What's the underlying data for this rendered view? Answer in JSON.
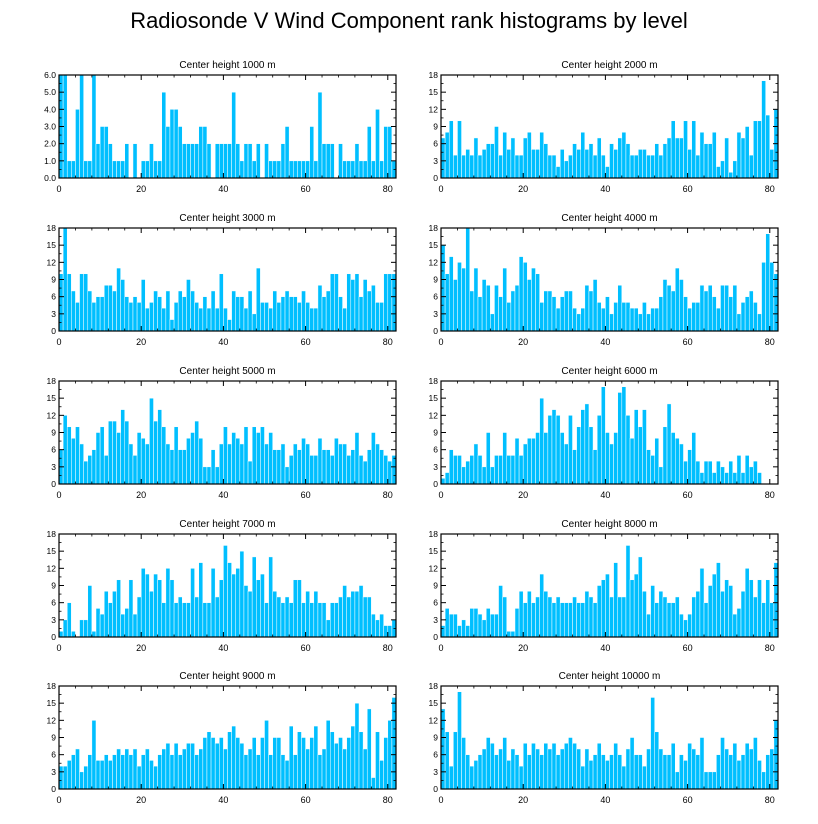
{
  "title": "Radiosonde V Wind Component rank histograms by level",
  "bar_color": "#00BFFF",
  "bar_edge_color": "#ffffff",
  "chart_data": [
    {
      "type": "bar",
      "title": "Center height 1000 m",
      "x_ticks": [
        0,
        20,
        40,
        60,
        80
      ],
      "xlim": [
        0,
        82
      ],
      "ylim": [
        0,
        6
      ],
      "y_ticks": [
        0,
        1,
        2,
        3,
        4,
        5,
        6
      ],
      "y_tick_labels": [
        "0.0",
        "1.0",
        "2.0",
        "3.0",
        "4.0",
        "5.0",
        "6.0"
      ],
      "values": [
        6,
        6,
        1,
        1,
        4,
        6,
        1,
        1,
        6,
        2,
        3,
        3,
        2,
        1,
        1,
        1,
        2,
        0,
        2,
        0,
        1,
        1,
        2,
        1,
        1,
        5,
        3,
        4,
        4,
        3,
        2,
        2,
        2,
        2,
        3,
        3,
        2,
        0,
        2,
        2,
        2,
        2,
        5,
        2,
        1,
        2,
        2,
        1,
        2,
        0,
        2,
        1,
        1,
        1,
        2,
        3,
        1,
        1,
        1,
        1,
        1,
        3,
        1,
        5,
        2,
        2,
        2,
        0,
        2,
        1,
        1,
        1,
        2,
        1,
        1,
        3,
        1,
        4,
        1,
        3,
        3,
        1
      ]
    },
    {
      "type": "bar",
      "title": "Center height 2000 m",
      "x_ticks": [
        0,
        20,
        40,
        60,
        80
      ],
      "xlim": [
        0,
        82
      ],
      "ylim": [
        0,
        18
      ],
      "y_ticks": [
        0,
        3,
        6,
        9,
        12,
        15,
        18
      ],
      "y_tick_labels": [
        "0",
        "3",
        "6",
        "9",
        "12",
        "15",
        "18"
      ],
      "values": [
        7,
        8,
        10,
        4,
        10,
        4,
        5,
        4,
        7,
        4,
        5,
        6,
        6,
        9,
        4,
        8,
        5,
        7,
        4,
        4,
        7,
        8,
        5,
        5,
        8,
        6,
        4,
        4,
        2,
        5,
        3,
        4,
        6,
        5,
        8,
        5,
        6,
        4,
        7,
        4,
        2,
        6,
        5,
        7,
        8,
        6,
        4,
        4,
        5,
        5,
        4,
        4,
        6,
        4,
        6,
        7,
        10,
        7,
        7,
        10,
        5,
        10,
        4,
        8,
        6,
        6,
        8,
        2,
        3,
        7,
        1,
        3,
        8,
        7,
        9,
        4,
        10,
        10,
        17,
        11,
        5,
        12
      ]
    },
    {
      "type": "bar",
      "title": "Center height 3000 m",
      "x_ticks": [
        0,
        20,
        40,
        60,
        80
      ],
      "xlim": [
        0,
        82
      ],
      "ylim": [
        0,
        18
      ],
      "y_ticks": [
        0,
        3,
        6,
        9,
        12,
        15,
        18
      ],
      "y_tick_labels": [
        "0",
        "3",
        "6",
        "9",
        "12",
        "15",
        "18"
      ],
      "values": [
        10,
        18,
        10,
        7,
        5,
        10,
        10,
        7,
        5,
        6,
        6,
        8,
        8,
        7,
        11,
        9,
        6,
        5,
        6,
        5,
        9,
        4,
        5,
        7,
        6,
        4,
        7,
        2,
        5,
        7,
        6,
        9,
        7,
        5,
        4,
        6,
        4,
        7,
        4,
        10,
        4,
        2,
        7,
        6,
        6,
        4,
        7,
        3,
        11,
        5,
        5,
        4,
        7,
        5,
        6,
        7,
        6,
        6,
        5,
        7,
        5,
        4,
        4,
        8,
        6,
        7,
        10,
        10,
        6,
        4,
        10,
        9,
        10,
        6,
        9,
        7,
        8,
        5,
        5,
        10,
        10,
        10
      ]
    },
    {
      "type": "bar",
      "title": "Center height 4000 m",
      "x_ticks": [
        0,
        20,
        40,
        60,
        80
      ],
      "xlim": [
        0,
        82
      ],
      "ylim": [
        0,
        18
      ],
      "y_ticks": [
        0,
        3,
        6,
        9,
        12,
        15,
        18
      ],
      "y_tick_labels": [
        "0",
        "3",
        "6",
        "9",
        "12",
        "15",
        "18"
      ],
      "values": [
        15,
        10,
        13,
        9,
        12,
        11,
        18,
        7,
        11,
        6,
        9,
        8,
        3,
        8,
        6,
        11,
        5,
        7,
        8,
        13,
        12,
        9,
        11,
        10,
        5,
        7,
        7,
        6,
        4,
        6,
        7,
        7,
        4,
        3,
        4,
        8,
        7,
        9,
        5,
        4,
        6,
        3,
        5,
        8,
        5,
        5,
        4,
        4,
        3,
        5,
        3,
        4,
        4,
        6,
        9,
        8,
        7,
        11,
        9,
        6,
        4,
        5,
        5,
        8,
        7,
        8,
        6,
        4,
        8,
        8,
        6,
        8,
        3,
        5,
        6,
        7,
        5,
        3,
        12,
        17,
        12,
        10
      ]
    },
    {
      "type": "bar",
      "title": "Center height 5000 m",
      "x_ticks": [
        0,
        20,
        40,
        60,
        80
      ],
      "xlim": [
        0,
        82
      ],
      "ylim": [
        0,
        18
      ],
      "y_ticks": [
        0,
        3,
        6,
        9,
        12,
        15,
        18
      ],
      "y_tick_labels": [
        "0",
        "3",
        "6",
        "9",
        "12",
        "15",
        "18"
      ],
      "values": [
        6,
        12,
        10,
        8,
        10,
        7,
        4,
        5,
        6,
        9,
        10,
        5,
        11,
        11,
        9,
        13,
        11,
        7,
        5,
        9,
        8,
        7,
        15,
        11,
        13,
        10,
        7,
        6,
        10,
        6,
        6,
        8,
        9,
        11,
        8,
        3,
        3,
        6,
        3,
        7,
        10,
        7,
        9,
        8,
        7,
        10,
        4,
        10,
        9,
        10,
        7,
        9,
        6,
        6,
        7,
        3,
        5,
        7,
        6,
        8,
        7,
        5,
        5,
        8,
        6,
        6,
        5,
        8,
        7,
        7,
        5,
        6,
        9,
        5,
        4,
        6,
        9,
        7,
        6,
        5,
        4,
        5
      ]
    },
    {
      "type": "bar",
      "title": "Center height 6000 m",
      "x_ticks": [
        0,
        20,
        40,
        60,
        80
      ],
      "xlim": [
        0,
        82
      ],
      "ylim": [
        0,
        18
      ],
      "y_ticks": [
        0,
        3,
        6,
        9,
        12,
        15,
        18
      ],
      "y_tick_labels": [
        "0",
        "3",
        "6",
        "9",
        "12",
        "15",
        "18"
      ],
      "values": [
        1,
        2,
        6,
        5,
        5,
        3,
        4,
        5,
        7,
        5,
        3,
        9,
        3,
        5,
        5,
        9,
        5,
        5,
        8,
        5,
        7,
        8,
        8,
        9,
        15,
        9,
        12,
        13,
        12,
        9,
        7,
        12,
        6,
        10,
        13,
        14,
        10,
        6,
        12,
        17,
        9,
        7,
        9,
        16,
        17,
        12,
        8,
        13,
        10,
        13,
        6,
        5,
        8,
        3,
        10,
        14,
        9,
        8,
        7,
        4,
        6,
        9,
        4,
        2,
        4,
        4,
        2,
        4,
        3,
        2,
        4,
        2,
        5,
        2,
        5,
        3,
        4,
        2
      ]
    },
    {
      "type": "bar",
      "title": "Center height 7000 m",
      "x_ticks": [
        0,
        20,
        40,
        60,
        80
      ],
      "xlim": [
        0,
        82
      ],
      "ylim": [
        0,
        18
      ],
      "y_ticks": [
        0,
        3,
        6,
        9,
        12,
        15,
        18
      ],
      "y_tick_labels": [
        "0",
        "3",
        "6",
        "9",
        "12",
        "15",
        "18"
      ],
      "values": [
        1,
        3,
        6,
        1,
        0,
        3,
        3,
        9,
        1,
        5,
        4,
        8,
        6,
        8,
        10,
        4,
        5,
        10,
        4,
        7,
        12,
        11,
        8,
        11,
        10,
        6,
        12,
        10,
        6,
        7,
        6,
        6,
        12,
        7,
        13,
        6,
        6,
        12,
        7,
        10,
        16,
        13,
        11,
        12,
        15,
        9,
        8,
        14,
        10,
        11,
        6,
        14,
        8,
        7,
        6,
        7,
        6,
        10,
        10,
        6,
        8,
        6,
        8,
        6,
        6,
        3,
        6,
        6,
        7,
        9,
        7,
        8,
        8,
        9,
        7,
        7,
        4,
        3,
        4,
        2,
        2,
        3
      ]
    },
    {
      "type": "bar",
      "title": "Center height 8000 m",
      "x_ticks": [
        0,
        20,
        40,
        60,
        80
      ],
      "xlim": [
        0,
        82
      ],
      "ylim": [
        0,
        18
      ],
      "y_ticks": [
        0,
        3,
        6,
        9,
        12,
        15,
        18
      ],
      "y_tick_labels": [
        "0",
        "3",
        "6",
        "9",
        "12",
        "15",
        "18"
      ],
      "values": [
        2,
        5,
        4,
        4,
        2,
        3,
        2,
        5,
        5,
        4,
        3,
        5,
        4,
        4,
        9,
        7,
        1,
        1,
        5,
        8,
        6,
        8,
        6,
        7,
        11,
        8,
        7,
        6,
        7,
        6,
        6,
        6,
        7,
        6,
        6,
        8,
        7,
        6,
        9,
        10,
        11,
        7,
        13,
        7,
        7,
        16,
        10,
        11,
        14,
        8,
        4,
        9,
        6,
        8,
        7,
        6,
        6,
        7,
        4,
        3,
        4,
        7,
        8,
        12,
        6,
        9,
        11,
        13,
        8,
        10,
        9,
        4,
        5,
        8,
        12,
        10,
        7,
        10,
        6,
        10,
        6,
        13
      ]
    },
    {
      "type": "bar",
      "title": "Center height 9000 m",
      "x_ticks": [
        0,
        20,
        40,
        60,
        80
      ],
      "xlim": [
        0,
        82
      ],
      "ylim": [
        0,
        18
      ],
      "y_ticks": [
        0,
        3,
        6,
        9,
        12,
        15,
        18
      ],
      "y_tick_labels": [
        "0",
        "3",
        "6",
        "9",
        "12",
        "15",
        "18"
      ],
      "values": [
        4,
        4,
        5,
        6,
        7,
        3,
        4,
        6,
        12,
        5,
        5,
        6,
        5,
        6,
        7,
        6,
        7,
        6,
        7,
        4,
        6,
        7,
        5,
        4,
        6,
        7,
        8,
        6,
        8,
        6,
        7,
        8,
        8,
        6,
        7,
        9,
        10,
        9,
        8,
        9,
        7,
        10,
        11,
        9,
        8,
        6,
        7,
        9,
        6,
        9,
        12,
        6,
        9,
        9,
        6,
        5,
        11,
        6,
        10,
        9,
        7,
        9,
        11,
        6,
        7,
        12,
        10,
        8,
        9,
        7,
        9,
        11,
        15,
        10,
        7,
        14,
        2,
        10,
        5,
        9,
        12,
        16
      ]
    },
    {
      "type": "bar",
      "title": "Center height 10000 m",
      "x_ticks": [
        0,
        20,
        40,
        60,
        80
      ],
      "xlim": [
        0,
        82
      ],
      "ylim": [
        0,
        18
      ],
      "y_ticks": [
        0,
        3,
        6,
        9,
        12,
        15,
        18
      ],
      "y_tick_labels": [
        "0",
        "3",
        "6",
        "9",
        "12",
        "15",
        "18"
      ],
      "values": [
        14,
        10,
        4,
        10,
        17,
        9,
        6,
        4,
        5,
        6,
        7,
        9,
        8,
        6,
        7,
        9,
        5,
        7,
        6,
        4,
        8,
        6,
        8,
        7,
        6,
        8,
        7,
        8,
        6,
        7,
        8,
        9,
        8,
        7,
        4,
        7,
        5,
        6,
        8,
        6,
        5,
        6,
        8,
        6,
        4,
        7,
        9,
        6,
        6,
        4,
        7,
        16,
        10,
        7,
        6,
        6,
        8,
        3,
        6,
        5,
        8,
        7,
        6,
        9,
        3,
        3,
        3,
        6,
        9,
        7,
        6,
        8,
        5,
        6,
        8,
        7,
        9,
        5,
        3,
        6,
        7,
        12
      ]
    }
  ]
}
